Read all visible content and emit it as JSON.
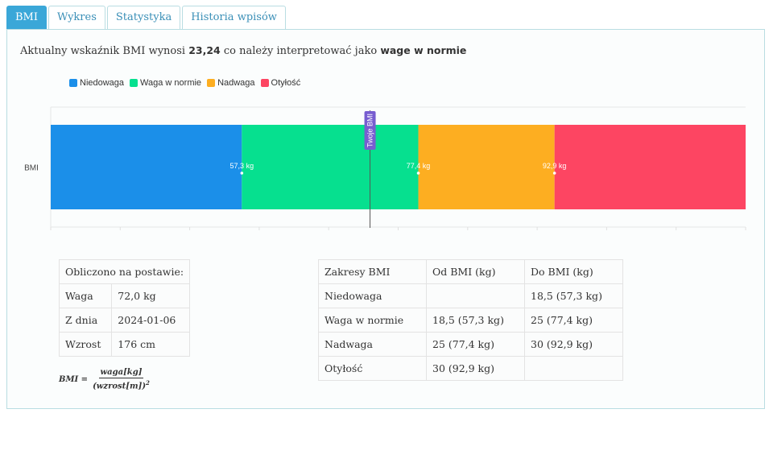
{
  "tabs": [
    {
      "label": "BMI",
      "active": true
    },
    {
      "label": "Wykres",
      "active": false
    },
    {
      "label": "Statystyka",
      "active": false
    },
    {
      "label": "Historia wpisów",
      "active": false
    }
  ],
  "summary": {
    "prefix": "Aktualny wskaźnik BMI wynosi",
    "bmi_value": "23,24",
    "middle": "co należy interpretować jako",
    "category": "wage w normie"
  },
  "chart_data": {
    "type": "bar",
    "orientation": "horizontal-stacked",
    "categories": [
      "BMI"
    ],
    "legend": [
      {
        "name": "Niedowaga",
        "color": "#1b8fe9"
      },
      {
        "name": "Waga w normie",
        "color": "#06e08f"
      },
      {
        "name": "Nadwaga",
        "color": "#fdae21"
      },
      {
        "name": "Otyłość",
        "color": "#fd4562"
      }
    ],
    "boundary_labels": [
      "57,3 kg",
      "77,4 kg",
      "92,9 kg"
    ],
    "segment_fractions": [
      0.275,
      0.254,
      0.196,
      0.275
    ],
    "marker": {
      "label": "Twoje BMI",
      "position_fraction": 0.4595
    },
    "legend_position": "top-left",
    "grid": true
  },
  "basis": {
    "title": "Obliczono na postawie:",
    "rows": [
      {
        "key": "Waga",
        "value": "72,0 kg"
      },
      {
        "key": "Z dnia",
        "value": "2024-01-06"
      },
      {
        "key": "Wzrost",
        "value": "176 cm"
      }
    ]
  },
  "ranges": {
    "headers": [
      "Zakresy BMI",
      "Od BMI (kg)",
      "Do BMI (kg)"
    ],
    "rows": [
      [
        "Niedowaga",
        "",
        "18,5 (57,3 kg)"
      ],
      [
        "Waga w normie",
        "18,5 (57,3 kg)",
        "25 (77,4 kg)"
      ],
      [
        "Nadwaga",
        "25 (77,4 kg)",
        "30 (92,9 kg)"
      ],
      [
        "Otyłość",
        "30 (92,9 kg)",
        ""
      ]
    ]
  },
  "formula": {
    "lhs": "BMI =",
    "numerator": "waga[kg]",
    "denominator": "(wzrost[m])",
    "exponent": "2"
  }
}
